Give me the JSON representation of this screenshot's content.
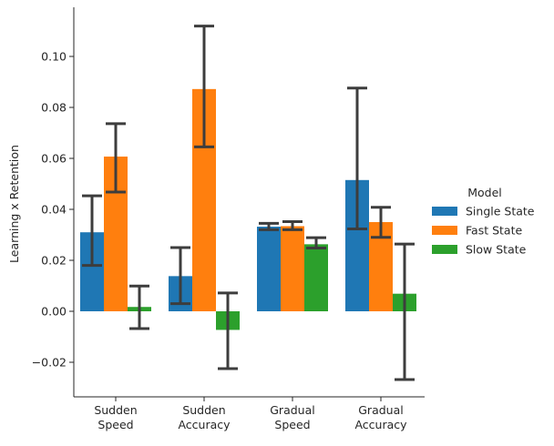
{
  "chart_data": {
    "type": "bar",
    "categories": [
      [
        "Sudden",
        "Speed"
      ],
      [
        "Sudden",
        "Accuracy"
      ],
      [
        "Gradual",
        "Speed"
      ],
      [
        "Gradual",
        "Accuracy"
      ]
    ],
    "ylabel": "Learning x Retention",
    "xlabel": "",
    "ylim": [
      -0.033,
      0.119
    ],
    "yticks": [
      -0.02,
      0.0,
      0.02,
      0.04,
      0.06,
      0.08,
      0.1
    ],
    "ytick_labels": [
      "−0.02",
      "0.00",
      "0.02",
      "0.04",
      "0.06",
      "0.08",
      "0.10"
    ],
    "grid": false,
    "legend": {
      "title": "Model",
      "placement": "right"
    },
    "series": [
      {
        "name": "Single State",
        "color": "#1f77b4",
        "values": [
          0.031,
          0.0138,
          0.0332,
          0.0515
        ],
        "err_low": [
          0.018,
          0.003,
          0.032,
          0.0323
        ],
        "err_high": [
          0.0453,
          0.025,
          0.0345,
          0.0876
        ]
      },
      {
        "name": "Fast State",
        "color": "#ff7f0e",
        "values": [
          0.0607,
          0.0872,
          0.0334,
          0.035
        ],
        "err_low": [
          0.0468,
          0.0645,
          0.032,
          0.029
        ],
        "err_high": [
          0.0736,
          0.1119,
          0.0352,
          0.0408
        ]
      },
      {
        "name": "Slow State",
        "color": "#2ca02c",
        "values": [
          0.0017,
          -0.0073,
          0.0263,
          0.0069
        ],
        "err_low": [
          -0.0068,
          -0.0225,
          0.0248,
          -0.0268
        ],
        "err_high": [
          0.0099,
          0.0072,
          0.0289,
          0.0264
        ]
      }
    ]
  }
}
